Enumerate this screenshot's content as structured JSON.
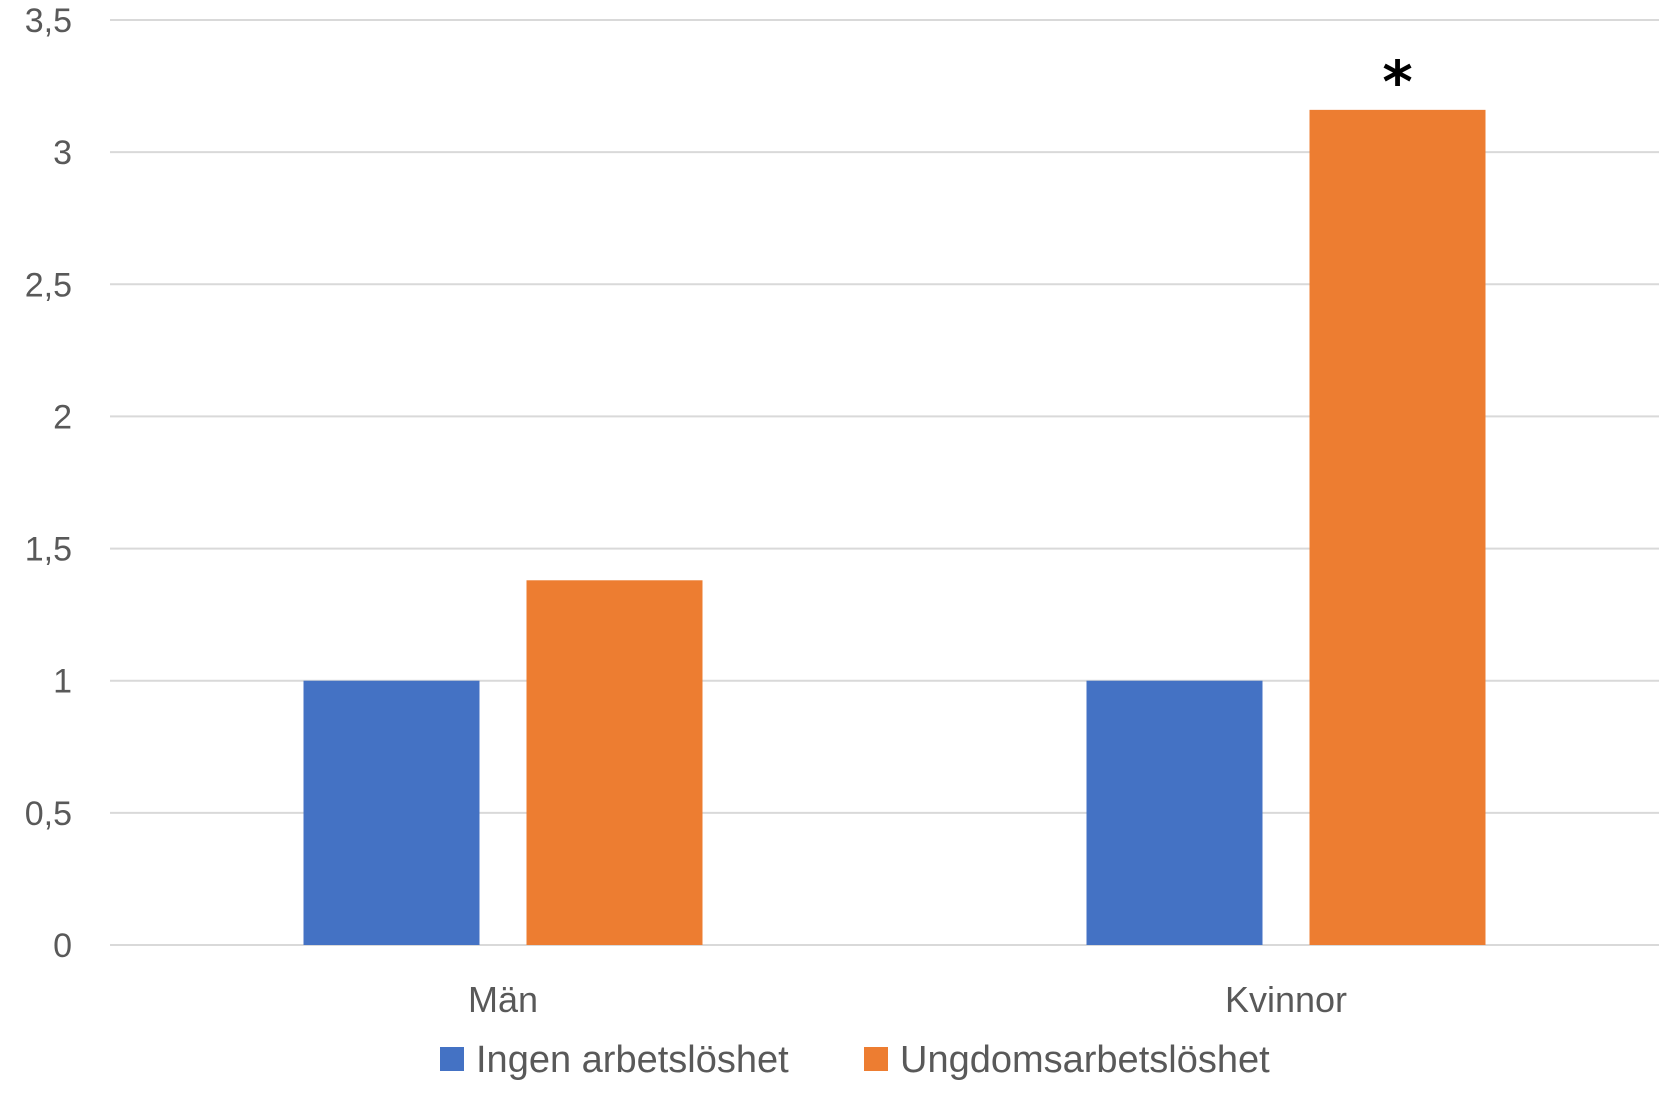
{
  "chart_data": {
    "type": "bar",
    "categories": [
      "Män",
      "Kvinnor"
    ],
    "series": [
      {
        "name": "Ingen arbetslöshet",
        "values": [
          1,
          1
        ],
        "color": "#4472c4"
      },
      {
        "name": "Ungdomsarbetslöshet",
        "values": [
          1.38,
          3.16
        ],
        "color": "#ed7d31"
      }
    ],
    "ylim": [
      0,
      3.5
    ],
    "yticks": [
      0,
      0.5,
      1,
      1.5,
      2,
      2.5,
      3,
      3.5
    ],
    "ytick_labels": [
      "0",
      "0,5",
      "1",
      "1,5",
      "2",
      "2,5",
      "3",
      "3,5"
    ],
    "grid": true,
    "legend_position": "bottom",
    "annotations": [
      {
        "text": "*",
        "category": "Kvinnor",
        "series": "Ungdomsarbetslöshet"
      }
    ]
  }
}
